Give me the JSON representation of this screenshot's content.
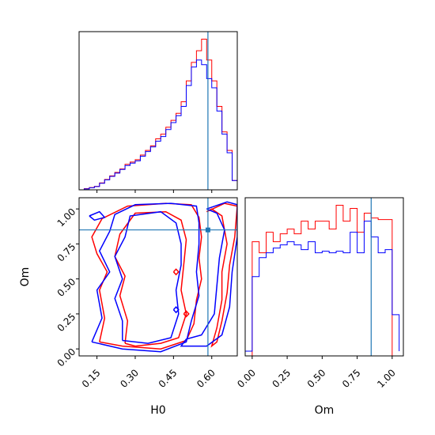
{
  "chart_data": [
    {
      "type": "histogram",
      "panel": "H0 marginal",
      "xlim": [
        0.08,
        0.7
      ],
      "truth": 0.585,
      "series": [
        {
          "color": "#ff0000",
          "edges": [
            0.08,
            0.1,
            0.12,
            0.14,
            0.16,
            0.18,
            0.2,
            0.22,
            0.24,
            0.26,
            0.28,
            0.3,
            0.32,
            0.34,
            0.36,
            0.38,
            0.4,
            0.42,
            0.44,
            0.46,
            0.48,
            0.5,
            0.52,
            0.54,
            0.56,
            0.58,
            0.6,
            0.62,
            0.64,
            0.66,
            0.68,
            0.7
          ],
          "counts": [
            0,
            0.5,
            1.0,
            1.5,
            3,
            4.5,
            6,
            7.5,
            9,
            11,
            12,
            13,
            15,
            17,
            19,
            22,
            24,
            27,
            30,
            33,
            38,
            47,
            55,
            60,
            65,
            56,
            47,
            36,
            25,
            17,
            4
          ]
        },
        {
          "color": "#0000ff",
          "edges": [
            0.08,
            0.1,
            0.12,
            0.14,
            0.16,
            0.18,
            0.2,
            0.22,
            0.24,
            0.26,
            0.28,
            0.3,
            0.32,
            0.34,
            0.36,
            0.38,
            0.4,
            0.42,
            0.44,
            0.46,
            0.48,
            0.5,
            0.52,
            0.54,
            0.56,
            0.58,
            0.6,
            0.62,
            0.64,
            0.66,
            0.68,
            0.7
          ],
          "counts": [
            0,
            0.4,
            0.9,
            1.4,
            2.8,
            4.3,
            5.8,
            7.2,
            8.8,
            10.5,
            11.5,
            12.5,
            14.5,
            16.5,
            18.5,
            21,
            23,
            26,
            29,
            32,
            36,
            45,
            53,
            56,
            54,
            48,
            44,
            34,
            24,
            16,
            4
          ]
        }
      ]
    },
    {
      "type": "contour",
      "panel": "H0 vs Om",
      "xlabel": "H0",
      "ylabel": "Om",
      "xlim": [
        0.08,
        0.7
      ],
      "ylim": [
        -0.05,
        1.08
      ],
      "xticks": [
        "0.15",
        "0.30",
        "0.45",
        "0.60"
      ],
      "yticks": [
        "0.00",
        "0.25",
        "0.50",
        "0.75",
        "1.00"
      ],
      "truth": {
        "x": 0.585,
        "y": 0.85
      },
      "series": [
        {
          "color": "#ff0000",
          "contours": [
            [
              [
                0.16,
                0.05
              ],
              [
                0.18,
                0.22
              ],
              [
                0.16,
                0.42
              ],
              [
                0.19,
                0.55
              ],
              [
                0.15,
                0.68
              ],
              [
                0.13,
                0.8
              ],
              [
                0.17,
                0.93
              ],
              [
                0.27,
                1.02
              ],
              [
                0.42,
                1.04
              ],
              [
                0.52,
                1.03
              ],
              [
                0.55,
                0.94
              ],
              [
                0.56,
                0.8
              ],
              [
                0.55,
                0.65
              ],
              [
                0.56,
                0.5
              ],
              [
                0.54,
                0.35
              ],
              [
                0.53,
                0.18
              ],
              [
                0.5,
                0.06
              ],
              [
                0.4,
                0.0
              ],
              [
                0.25,
                0.02
              ],
              [
                0.16,
                0.05
              ]
            ],
            [
              [
                0.26,
                0.04
              ],
              [
                0.27,
                0.2
              ],
              [
                0.24,
                0.38
              ],
              [
                0.26,
                0.52
              ],
              [
                0.22,
                0.66
              ],
              [
                0.24,
                0.82
              ],
              [
                0.3,
                0.97
              ],
              [
                0.42,
                0.98
              ],
              [
                0.48,
                0.92
              ],
              [
                0.5,
                0.78
              ],
              [
                0.49,
                0.6
              ],
              [
                0.48,
                0.42
              ],
              [
                0.5,
                0.25
              ],
              [
                0.47,
                0.08
              ],
              [
                0.4,
                0.04
              ],
              [
                0.3,
                0.02
              ],
              [
                0.26,
                0.04
              ]
            ],
            [
              [
                0.58,
                0.98
              ],
              [
                0.65,
                1.04
              ],
              [
                0.7,
                1.02
              ],
              [
                0.69,
                0.8
              ],
              [
                0.67,
                0.6
              ],
              [
                0.66,
                0.4
              ],
              [
                0.64,
                0.2
              ],
              [
                0.62,
                0.05
              ],
              [
                0.6,
                0.02
              ],
              [
                0.62,
                0.15
              ],
              [
                0.64,
                0.35
              ],
              [
                0.64,
                0.55
              ],
              [
                0.66,
                0.75
              ],
              [
                0.64,
                0.95
              ],
              [
                0.6,
                1.0
              ],
              [
                0.58,
                0.98
              ]
            ],
            [
              [
                0.45,
                0.55
              ],
              [
                0.46,
                0.53
              ],
              [
                0.47,
                0.55
              ],
              [
                0.46,
                0.57
              ],
              [
                0.45,
                0.55
              ]
            ],
            [
              [
                0.49,
                0.25
              ],
              [
                0.5,
                0.23
              ],
              [
                0.51,
                0.25
              ],
              [
                0.5,
                0.27
              ],
              [
                0.49,
                0.25
              ]
            ]
          ]
        },
        {
          "color": "#0000ff",
          "contours": [
            [
              [
                0.13,
                0.05
              ],
              [
                0.17,
                0.22
              ],
              [
                0.15,
                0.42
              ],
              [
                0.2,
                0.55
              ],
              [
                0.16,
                0.7
              ],
              [
                0.2,
                0.84
              ],
              [
                0.22,
                0.96
              ],
              [
                0.3,
                1.03
              ],
              [
                0.44,
                1.04
              ],
              [
                0.54,
                1.02
              ],
              [
                0.55,
                0.9
              ],
              [
                0.55,
                0.75
              ],
              [
                0.54,
                0.55
              ],
              [
                0.55,
                0.38
              ],
              [
                0.52,
                0.2
              ],
              [
                0.5,
                0.05
              ],
              [
                0.4,
                -0.02
              ],
              [
                0.25,
                0.0
              ],
              [
                0.13,
                0.05
              ]
            ],
            [
              [
                0.25,
                0.06
              ],
              [
                0.25,
                0.2
              ],
              [
                0.22,
                0.36
              ],
              [
                0.25,
                0.5
              ],
              [
                0.22,
                0.66
              ],
              [
                0.26,
                0.8
              ],
              [
                0.28,
                0.95
              ],
              [
                0.4,
                0.98
              ],
              [
                0.46,
                0.9
              ],
              [
                0.48,
                0.75
              ],
              [
                0.48,
                0.6
              ],
              [
                0.46,
                0.42
              ],
              [
                0.47,
                0.25
              ],
              [
                0.44,
                0.08
              ],
              [
                0.35,
                0.04
              ],
              [
                0.25,
                0.06
              ]
            ],
            [
              [
                0.58,
                1.0
              ],
              [
                0.66,
                1.05
              ],
              [
                0.7,
                1.03
              ],
              [
                0.7,
                0.8
              ],
              [
                0.68,
                0.55
              ],
              [
                0.67,
                0.3
              ],
              [
                0.64,
                0.1
              ],
              [
                0.58,
                0.02
              ],
              [
                0.48,
                0.02
              ],
              [
                0.5,
                0.07
              ],
              [
                0.56,
                0.1
              ],
              [
                0.61,
                0.25
              ],
              [
                0.62,
                0.45
              ],
              [
                0.63,
                0.65
              ],
              [
                0.65,
                0.85
              ],
              [
                0.62,
                0.97
              ],
              [
                0.58,
                1.0
              ]
            ],
            [
              [
                0.12,
                0.95
              ],
              [
                0.16,
                0.98
              ],
              [
                0.18,
                0.94
              ],
              [
                0.14,
                0.92
              ],
              [
                0.12,
                0.95
              ]
            ],
            [
              [
                0.45,
                0.28
              ],
              [
                0.46,
                0.26
              ],
              [
                0.47,
                0.28
              ],
              [
                0.46,
                0.3
              ],
              [
                0.45,
                0.28
              ]
            ]
          ]
        }
      ]
    },
    {
      "type": "histogram",
      "panel": "Om marginal",
      "xlabel": "Om",
      "xlim": [
        -0.05,
        1.08
      ],
      "xticks": [
        "0.00",
        "0.25",
        "0.50",
        "0.75",
        "1.00"
      ],
      "truth": 0.85,
      "series": [
        {
          "color": "#ff0000",
          "edges": [
            0.0,
            0.05,
            0.1,
            0.15,
            0.2,
            0.25,
            0.3,
            0.35,
            0.4,
            0.45,
            0.5,
            0.55,
            0.6,
            0.65,
            0.7,
            0.75,
            0.8,
            0.85,
            0.9,
            0.95,
            1.0
          ],
          "counts": [
            0.72,
            0.65,
            0.78,
            0.72,
            0.77,
            0.8,
            0.77,
            0.85,
            0.8,
            0.85,
            0.85,
            0.8,
            0.95,
            0.85,
            0.93,
            0.78,
            0.9,
            0.87,
            0.86,
            0.86
          ]
        },
        {
          "color": "#0000ff",
          "edges": [
            -0.05,
            0.0,
            0.05,
            0.1,
            0.15,
            0.2,
            0.25,
            0.3,
            0.35,
            0.4,
            0.45,
            0.5,
            0.55,
            0.6,
            0.65,
            0.7,
            0.75,
            0.8,
            0.85,
            0.9,
            0.95,
            1.0,
            1.05
          ],
          "counts": [
            0.03,
            0.5,
            0.62,
            0.65,
            0.68,
            0.7,
            0.72,
            0.7,
            0.67,
            0.72,
            0.65,
            0.66,
            0.65,
            0.66,
            0.65,
            0.78,
            0.65,
            0.85,
            0.75,
            0.65,
            0.67,
            0.26,
            0.03
          ]
        }
      ]
    }
  ]
}
